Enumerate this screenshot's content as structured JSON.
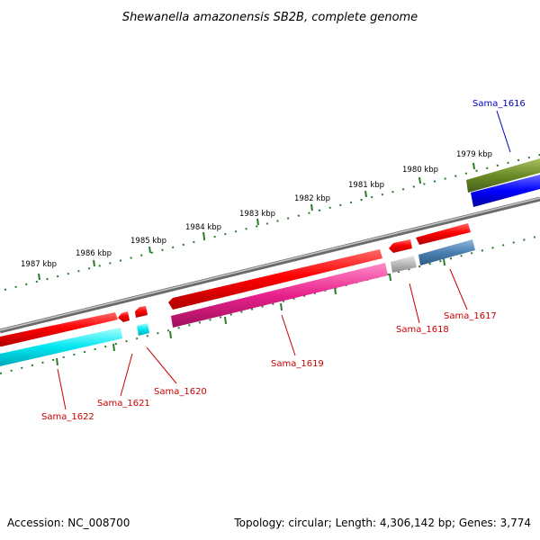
{
  "title": "Shewanella amazonensis SB2B, complete genome",
  "footer": {
    "accession": "Accession: NC_008700",
    "topology": "Topology: circular; Length: 4,306,142 bp; Genes: 3,774"
  },
  "colors": {
    "backbone": "#888888",
    "tick": "#2a7a2a",
    "label_red": "#cc0000",
    "label_blue": "#0000cc"
  },
  "kbp_ticks": [
    "1979 kbp",
    "1980 kbp",
    "1981 kbp",
    "1982 kbp",
    "1983 kbp",
    "1984 kbp",
    "1985 kbp",
    "1986 kbp",
    "1987 kbp"
  ],
  "genes": [
    {
      "name": "Sama_1616",
      "label_color": "#0000cc",
      "strand": "+",
      "color": "#0000ff"
    },
    {
      "name": "Sama_1617",
      "label_color": "#cc0000",
      "strand": "-",
      "color": "#4a7fb0"
    },
    {
      "name": "Sama_1618",
      "label_color": "#cc0000",
      "strand": "-",
      "color": "#b8b8b8"
    },
    {
      "name": "Sama_1619",
      "label_color": "#cc0000",
      "strand": "-",
      "color": "#e8208c"
    },
    {
      "name": "Sama_1620",
      "label_color": "#cc0000",
      "strand": "-",
      "color": "#00e6f0"
    },
    {
      "name": "Sama_1621",
      "label_color": "#cc0000",
      "strand": "+",
      "color": "#ff0000"
    },
    {
      "name": "Sama_1622",
      "label_color": "#cc0000",
      "strand": "-",
      "color": "#00e6f0"
    }
  ]
}
